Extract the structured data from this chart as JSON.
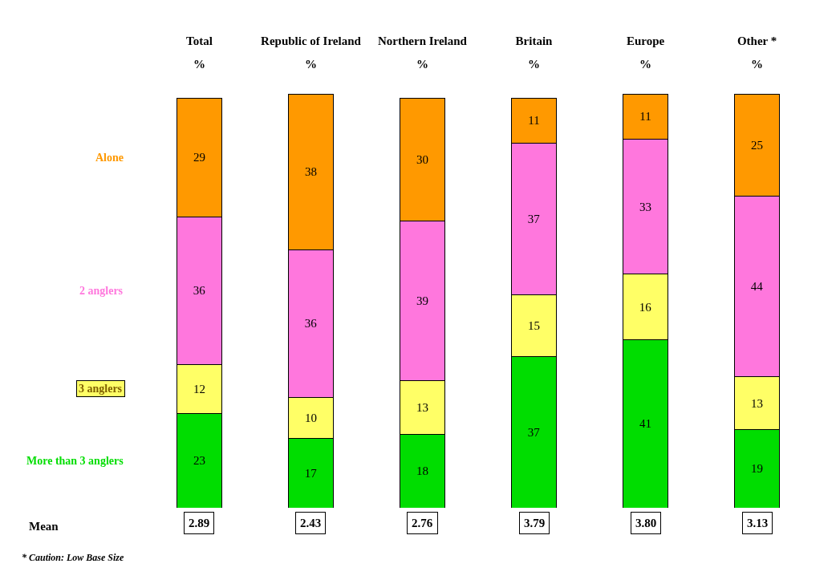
{
  "chart_data": {
    "type": "bar",
    "stacked": true,
    "ylabel": "%",
    "categories": [
      "Total",
      "Republic of Ireland",
      "Northern Ireland",
      "Britain",
      "Europe",
      "Other *"
    ],
    "series": [
      {
        "name": "More than 3 anglers",
        "color": "#00dd00",
        "values": [
          23,
          17,
          18,
          37,
          41,
          19
        ]
      },
      {
        "name": "3 anglers",
        "color": "#ffff66",
        "values": [
          12,
          10,
          13,
          15,
          16,
          13
        ]
      },
      {
        "name": "2 anglers",
        "color": "#ff77dd",
        "values": [
          36,
          36,
          39,
          37,
          33,
          44
        ]
      },
      {
        "name": "Alone",
        "color": "#ff9900",
        "values": [
          29,
          38,
          30,
          11,
          11,
          25
        ]
      }
    ],
    "data_labels": true,
    "tick_labels": "x",
    "legend": false,
    "annotations": [
      "Mean",
      "2.89",
      "2.43",
      "2.76",
      "3.79",
      "3.80",
      "3.13",
      "* Caution: Low Base Size"
    ]
  }
}
